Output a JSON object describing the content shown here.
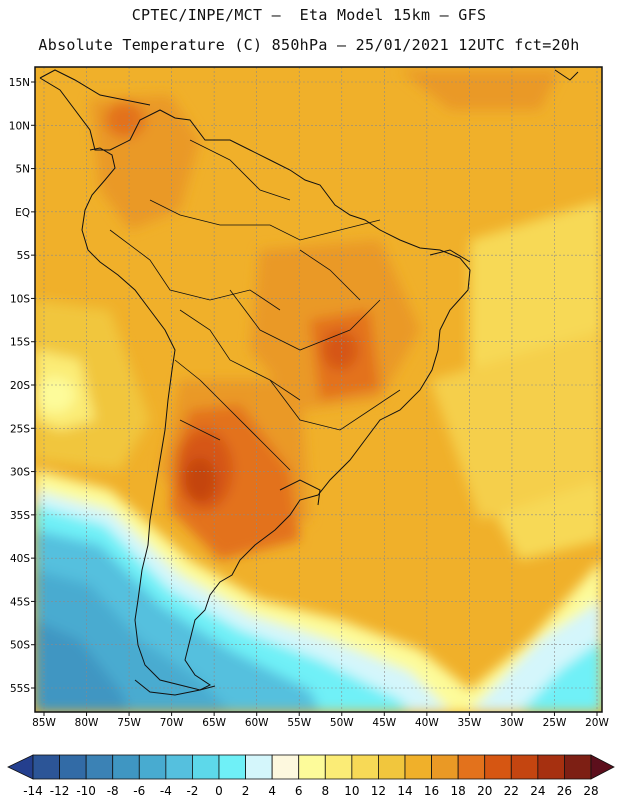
{
  "header": {
    "line1": "CPTEC/INPE/MCT –  Eta Model 15km – GFS",
    "line2": "Absolute Temperature (C) 850hPa – 25/01/2021 12UTC fct=20h"
  },
  "map": {
    "lat_labels": [
      "15N",
      "10N",
      "5N",
      "EQ",
      "5S",
      "10S",
      "15S",
      "20S",
      "25S",
      "30S",
      "35S",
      "40S",
      "45S",
      "50S",
      "55S"
    ],
    "lon_labels": [
      "85W",
      "80W",
      "75W",
      "70W",
      "65W",
      "60W",
      "55W",
      "50W",
      "45W",
      "40W",
      "35W",
      "30W",
      "25W",
      "20W"
    ]
  },
  "colorbar": {
    "labels": [
      "-14",
      "-12",
      "-10",
      "-8",
      "-6",
      "-4",
      "-2",
      "0",
      "2",
      "4",
      "6",
      "8",
      "10",
      "12",
      "14",
      "16",
      "18",
      "20",
      "22",
      "24",
      "26",
      "28"
    ],
    "colors": [
      "#243f8e",
      "#2c5597",
      "#326ba6",
      "#3b82b5",
      "#3f96c2",
      "#48abd0",
      "#55c0de",
      "#5dd8ea",
      "#6ff0f7",
      "#d4f6fb",
      "#fdf8de",
      "#fdfb9a",
      "#fbec76",
      "#f7d956",
      "#f1c63d",
      "#f0b02a",
      "#ea9925",
      "#e3721c",
      "#d65612",
      "#c44510",
      "#a63010",
      "#7d1f14",
      "#5c0f1c"
    ]
  }
}
